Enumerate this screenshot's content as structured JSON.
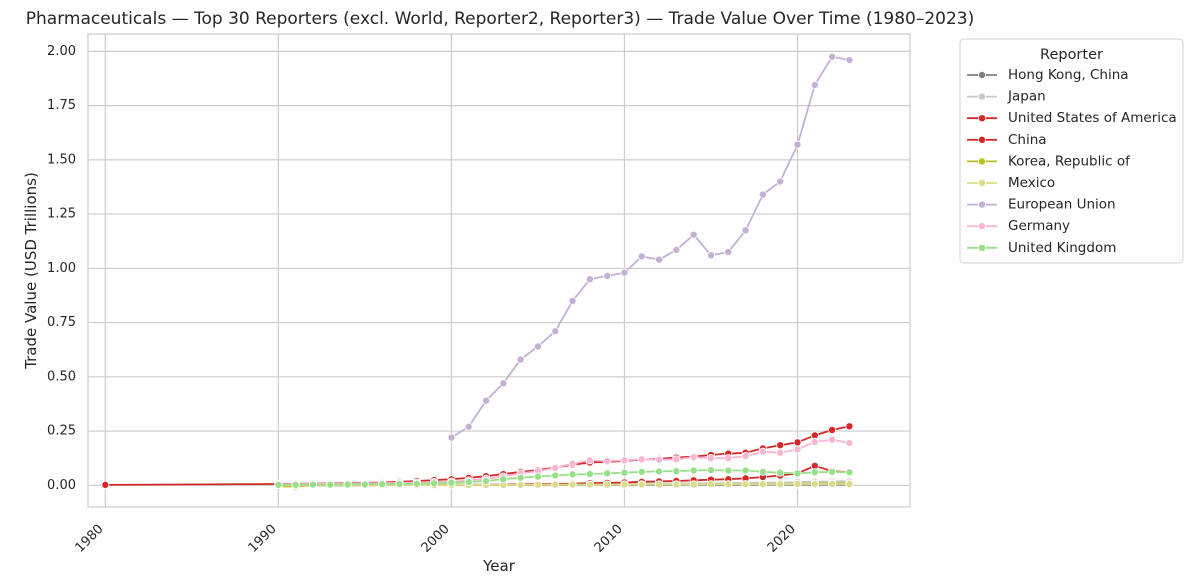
{
  "chart_data": {
    "type": "line",
    "title": "Pharmaceuticals — Top 30 Reporters (excl. World, Reporter2, Reporter3) — Trade Value Over Time (1980–2023)",
    "xlabel": "Year",
    "ylabel": "Trade Value (USD Trillions)",
    "xlim": [
      1979,
      2026.5
    ],
    "ylim": [
      -0.1,
      2.08
    ],
    "xticks": [
      1980,
      1990,
      2000,
      2010,
      2020
    ],
    "xtick_labels": [
      "1980",
      "1990",
      "2000",
      "2010",
      "2020"
    ],
    "yticks": [
      0,
      0.25,
      0.5,
      0.75,
      1.0,
      1.25,
      1.5,
      1.75,
      2.0
    ],
    "ytick_labels": [
      "0.00",
      "0.25",
      "0.50",
      "0.75",
      "1.00",
      "1.25",
      "1.50",
      "1.75",
      "2.00"
    ],
    "grid": true,
    "legend": {
      "title": "Reporter",
      "placement": "outside-upper-right"
    },
    "series": [
      {
        "name": "Hong Kong, China",
        "color": "#7f7f7f",
        "x": [
          1990,
          1991,
          1992,
          1993,
          1994,
          1995,
          1996,
          1997,
          1998,
          1999,
          2000,
          2001,
          2002,
          2003,
          2004,
          2005,
          2006,
          2007,
          2008,
          2009,
          2010,
          2011,
          2012,
          2013,
          2014,
          2015,
          2016,
          2017,
          2018,
          2019,
          2020,
          2021,
          2022,
          2023
        ],
        "y": [
          0.001,
          0.001,
          0.001,
          0.001,
          0.001,
          0.001,
          0.001,
          0.001,
          0.001,
          0.001,
          0.001,
          0.001,
          0.001,
          0.001,
          0.001,
          0.001,
          0.001,
          0.001,
          0.002,
          0.002,
          0.002,
          0.002,
          0.002,
          0.002,
          0.002,
          0.002,
          0.002,
          0.002,
          0.003,
          0.003,
          0.003,
          0.003,
          0.003,
          0.003
        ]
      },
      {
        "name": "Japan",
        "color": "#c7c7c7",
        "x": [
          1990,
          1991,
          1992,
          1993,
          1994,
          1995,
          1996,
          1997,
          1998,
          1999,
          2000,
          2001,
          2002,
          2003,
          2004,
          2005,
          2006,
          2007,
          2008,
          2009,
          2010,
          2011,
          2012,
          2013,
          2014,
          2015,
          2016,
          2017,
          2018,
          2019,
          2020,
          2021,
          2022,
          2023
        ],
        "y": [
          0.003,
          0.003,
          0.003,
          0.003,
          0.004,
          0.004,
          0.004,
          0.004,
          0.004,
          0.004,
          0.004,
          0.004,
          0.004,
          0.005,
          0.005,
          0.005,
          0.005,
          0.006,
          0.006,
          0.007,
          0.007,
          0.008,
          0.008,
          0.009,
          0.009,
          0.01,
          0.01,
          0.011,
          0.012,
          0.013,
          0.015,
          0.017,
          0.018,
          0.019
        ]
      },
      {
        "name": "United States of America",
        "color": "#d62728",
        "x": [
          1980,
          1990,
          1991,
          1992,
          1993,
          1994,
          1995,
          1996,
          1997,
          1998,
          1999,
          2000,
          2001,
          2002,
          2003,
          2004,
          2005,
          2006,
          2007,
          2008,
          2009,
          2010,
          2011,
          2012,
          2013,
          2014,
          2015,
          2016,
          2017,
          2018,
          2019,
          2020,
          2021,
          2022,
          2023
        ],
        "y": [
          0.002,
          0.006,
          0.007,
          0.008,
          0.009,
          0.01,
          0.011,
          0.013,
          0.016,
          0.02,
          0.024,
          0.028,
          0.034,
          0.042,
          0.052,
          0.062,
          0.07,
          0.082,
          0.095,
          0.105,
          0.108,
          0.112,
          0.118,
          0.122,
          0.128,
          0.132,
          0.14,
          0.146,
          0.15,
          0.17,
          0.185,
          0.198,
          0.23,
          0.255,
          0.272
        ]
      },
      {
        "name": "China",
        "color": "#d62728",
        "x": [
          1990,
          1991,
          1992,
          1993,
          1994,
          1995,
          1996,
          1997,
          1998,
          1999,
          2000,
          2001,
          2002,
          2003,
          2004,
          2005,
          2006,
          2007,
          2008,
          2009,
          2010,
          2011,
          2012,
          2013,
          2014,
          2015,
          2016,
          2017,
          2018,
          2019,
          2020,
          2021,
          2022,
          2023
        ],
        "y": [
          0.0,
          0.0,
          0.0,
          0.0,
          0.0,
          0.001,
          0.001,
          0.001,
          0.001,
          0.001,
          0.001,
          0.002,
          0.002,
          0.003,
          0.004,
          0.005,
          0.006,
          0.008,
          0.01,
          0.011,
          0.013,
          0.016,
          0.018,
          0.02,
          0.023,
          0.026,
          0.028,
          0.032,
          0.038,
          0.045,
          0.055,
          0.09,
          0.065,
          0.06
        ]
      },
      {
        "name": "Korea, Republic of",
        "color": "#bcbd22",
        "x": [
          1990,
          1991,
          1992,
          1993,
          1994,
          1995,
          1996,
          1997,
          1998,
          1999,
          2000,
          2001,
          2002,
          2003,
          2004,
          2005,
          2006,
          2007,
          2008,
          2009,
          2010,
          2011,
          2012,
          2013,
          2014,
          2015,
          2016,
          2017,
          2018,
          2019,
          2020,
          2021,
          2022,
          2023
        ],
        "y": [
          -0.005,
          -0.006,
          0.0,
          0.0,
          0.0,
          0.0,
          0.0,
          0.001,
          0.001,
          0.001,
          0.001,
          0.001,
          0.001,
          0.002,
          0.002,
          0.002,
          0.002,
          0.003,
          0.003,
          0.003,
          0.003,
          0.004,
          0.004,
          0.004,
          0.004,
          0.005,
          0.005,
          0.005,
          0.006,
          0.006,
          0.007,
          0.009,
          0.01,
          0.01
        ]
      },
      {
        "name": "Mexico",
        "color": "#dbdb8d",
        "x": [
          1990,
          1991,
          1992,
          1993,
          1994,
          1995,
          1996,
          1997,
          1998,
          1999,
          2000,
          2001,
          2002,
          2003,
          2004,
          2005,
          2006,
          2007,
          2008,
          2009,
          2010,
          2011,
          2012,
          2013,
          2014,
          2015,
          2016,
          2017,
          2018,
          2019,
          2020,
          2021,
          2022,
          2023
        ],
        "y": [
          0.0,
          0.0,
          0.0,
          0.0,
          0.001,
          0.001,
          0.001,
          0.001,
          0.001,
          0.001,
          0.002,
          0.002,
          0.002,
          0.002,
          0.002,
          0.003,
          0.003,
          0.003,
          0.003,
          0.003,
          0.004,
          0.004,
          0.004,
          0.004,
          0.004,
          0.005,
          0.005,
          0.005,
          0.005,
          0.005,
          0.006,
          0.006,
          0.006,
          0.006
        ]
      },
      {
        "name": "European Union",
        "color": "#c5b0d5",
        "x": [
          2000,
          2001,
          2002,
          2003,
          2004,
          2005,
          2006,
          2007,
          2008,
          2009,
          2010,
          2011,
          2012,
          2013,
          2014,
          2015,
          2016,
          2017,
          2018,
          2019,
          2020,
          2021,
          2022,
          2023
        ],
        "y": [
          0.22,
          0.27,
          0.39,
          0.47,
          0.58,
          0.64,
          0.71,
          0.85,
          0.95,
          0.965,
          0.98,
          1.055,
          1.04,
          1.085,
          1.155,
          1.06,
          1.075,
          1.175,
          1.34,
          1.4,
          1.57,
          1.845,
          1.975,
          1.96
        ]
      },
      {
        "name": "Germany",
        "color": "#f7b6d2",
        "x": [
          1990,
          1991,
          1992,
          1993,
          1994,
          1995,
          1996,
          1997,
          1998,
          1999,
          2000,
          2001,
          2002,
          2003,
          2004,
          2005,
          2006,
          2007,
          2008,
          2009,
          2010,
          2011,
          2012,
          2013,
          2014,
          2015,
          2016,
          2017,
          2018,
          2019,
          2020,
          2021,
          2022,
          2023
        ],
        "y": [
          0.005,
          0.006,
          0.006,
          0.007,
          0.008,
          0.009,
          0.01,
          0.011,
          0.013,
          0.015,
          0.017,
          0.022,
          0.03,
          0.04,
          0.055,
          0.065,
          0.08,
          0.1,
          0.115,
          0.112,
          0.115,
          0.12,
          0.118,
          0.12,
          0.13,
          0.125,
          0.125,
          0.135,
          0.155,
          0.15,
          0.165,
          0.2,
          0.21,
          0.195
        ]
      },
      {
        "name": "United Kingdom",
        "color": "#98df8a",
        "x": [
          1990,
          1991,
          1992,
          1993,
          1994,
          1995,
          1996,
          1997,
          1998,
          1999,
          2000,
          2001,
          2002,
          2003,
          2004,
          2005,
          2006,
          2007,
          2008,
          2009,
          2010,
          2011,
          2012,
          2013,
          2014,
          2015,
          2016,
          2017,
          2018,
          2019,
          2020,
          2021,
          2022,
          2023
        ],
        "y": [
          0.002,
          0.002,
          0.003,
          0.003,
          0.004,
          0.004,
          0.005,
          0.006,
          0.007,
          0.009,
          0.012,
          0.015,
          0.02,
          0.028,
          0.035,
          0.04,
          0.045,
          0.05,
          0.052,
          0.055,
          0.058,
          0.062,
          0.064,
          0.065,
          0.068,
          0.07,
          0.068,
          0.068,
          0.062,
          0.058,
          0.055,
          0.06,
          0.062,
          0.06
        ]
      }
    ]
  }
}
